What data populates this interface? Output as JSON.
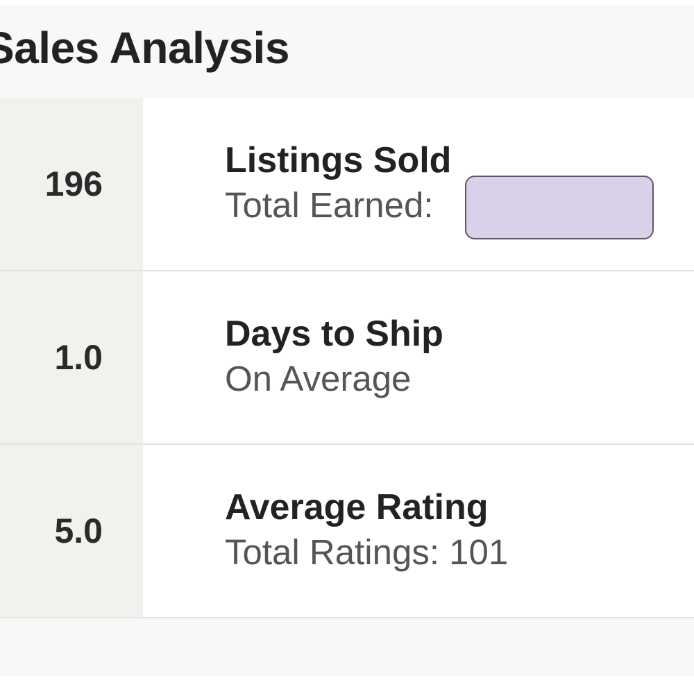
{
  "header": {
    "title": "Sales Analysis"
  },
  "rows": [
    {
      "value": "196",
      "title": "Listings Sold",
      "subtitle": "Total Earned:"
    },
    {
      "value": "1.0",
      "title": "Days to Ship",
      "subtitle": "On Average"
    },
    {
      "value": "5.0",
      "title": "Average Rating",
      "subtitle": "Total Ratings: 101"
    }
  ],
  "colors": {
    "header_bg": "#f8f8f8",
    "stat_bg": "#f2f1ee",
    "redaction": "#d9d1ea",
    "divider": "#e2e2e2"
  }
}
